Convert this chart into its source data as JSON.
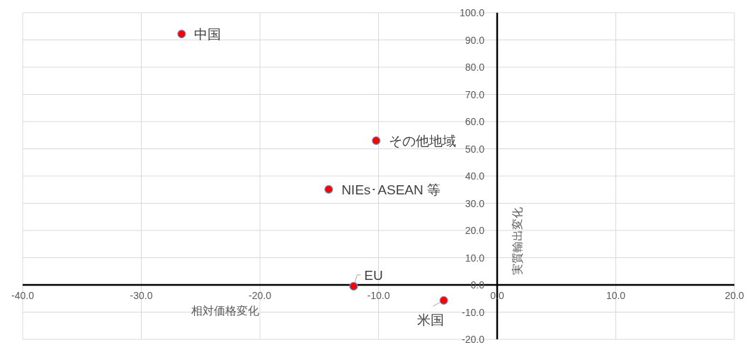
{
  "chart_data": {
    "type": "scatter",
    "xlabel": "相対価格変化",
    "ylabel": "実質輸出変化",
    "series": [
      {
        "color": "#ff0000",
        "x": [
          -26.6,
          -10.2,
          -14.2,
          -12.1,
          -4.5
        ],
        "values": [
          92.2,
          53.0,
          35.1,
          -0.5,
          -5.7
        ]
      }
    ],
    "marker": "circle",
    "grid": true,
    "xlim": [
      -40,
      20
    ],
    "ylim": [
      -20,
      100
    ],
    "xticks": [
      {
        "value": -40,
        "label": "-40.0"
      },
      {
        "value": -30,
        "label": "-30.0"
      },
      {
        "value": -20,
        "label": "-20.0"
      },
      {
        "value": -10,
        "label": "-10.0"
      },
      {
        "value": 0,
        "label": "0.0"
      },
      {
        "value": 10,
        "label": "10.0"
      },
      {
        "value": 20,
        "label": "20.0"
      }
    ],
    "yticks": [
      {
        "value": -20,
        "label": "-20.0"
      },
      {
        "value": -10,
        "label": "-10.0"
      },
      {
        "value": 0,
        "label": "0.0"
      },
      {
        "value": 10,
        "label": "10.0"
      },
      {
        "value": 20,
        "label": "20.0"
      },
      {
        "value": 30,
        "label": "30.0"
      },
      {
        "value": 40,
        "label": "40.0"
      },
      {
        "value": 50,
        "label": "50.0"
      },
      {
        "value": 60,
        "label": "60.0"
      },
      {
        "value": 70,
        "label": "70.0"
      },
      {
        "value": 80,
        "label": "80.0"
      },
      {
        "value": 90,
        "label": "90.0"
      },
      {
        "value": 100,
        "label": "100.0"
      }
    ],
    "annotations": [
      {
        "text": "中国",
        "x": -26.6,
        "y": 92.2
      },
      {
        "text": "その他地域",
        "x": -10.2,
        "y": 53.0
      },
      {
        "text": "NIEs･ASEAN 等",
        "x": -14.2,
        "y": 35.1
      },
      {
        "text": "EU",
        "x": -12.1,
        "y": -0.5
      },
      {
        "text": "米国",
        "x": -4.5,
        "y": -5.7
      }
    ]
  }
}
